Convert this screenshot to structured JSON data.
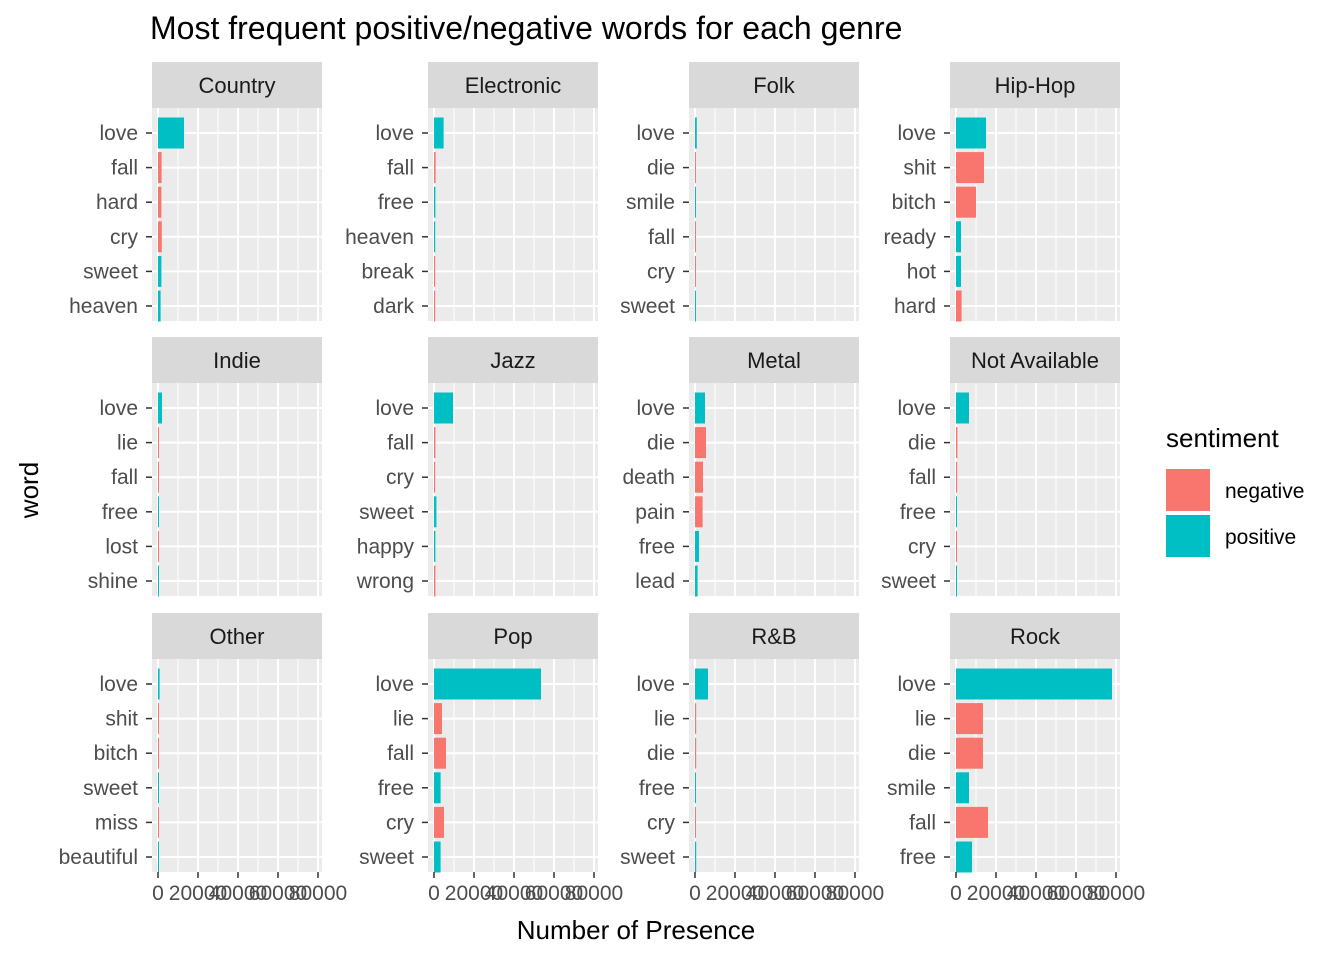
{
  "chart_data": {
    "type": "bar",
    "orientation": "horizontal",
    "title": "Most frequent positive/negative words for each genre",
    "xlabel": "Number of Presence",
    "ylabel": "word",
    "xlim": [
      0,
      80000
    ],
    "x_ticks": [
      0,
      20000,
      40000,
      60000,
      80000
    ],
    "x_tick_labels": [
      "0",
      "20000",
      "40000",
      "60000",
      "80000"
    ],
    "grid": true,
    "facet_layout": {
      "rows": 3,
      "cols": 4
    },
    "legend": {
      "title": "sentiment",
      "placement": "right",
      "entries": [
        {
          "name": "negative",
          "color": "#F8766D"
        },
        {
          "name": "positive",
          "color": "#00BFC4"
        }
      ]
    },
    "colors": {
      "negative": "#F8766D",
      "positive": "#00BFC4",
      "panel": "#EBEBEB",
      "strip": "#D9D9D9",
      "grid": "#FFFFFF"
    },
    "facets": [
      {
        "genre": "Country",
        "words": [
          {
            "word": "love",
            "value": 13000,
            "sentiment": "positive"
          },
          {
            "word": "fall",
            "value": 1800,
            "sentiment": "negative"
          },
          {
            "word": "hard",
            "value": 1700,
            "sentiment": "negative"
          },
          {
            "word": "cry",
            "value": 1900,
            "sentiment": "negative"
          },
          {
            "word": "sweet",
            "value": 1700,
            "sentiment": "positive"
          },
          {
            "word": "heaven",
            "value": 1300,
            "sentiment": "positive"
          }
        ]
      },
      {
        "genre": "Electronic",
        "words": [
          {
            "word": "love",
            "value": 4800,
            "sentiment": "positive"
          },
          {
            "word": "fall",
            "value": 800,
            "sentiment": "negative"
          },
          {
            "word": "free",
            "value": 700,
            "sentiment": "positive"
          },
          {
            "word": "heaven",
            "value": 600,
            "sentiment": "positive"
          },
          {
            "word": "break",
            "value": 600,
            "sentiment": "negative"
          },
          {
            "word": "dark",
            "value": 600,
            "sentiment": "negative"
          }
        ]
      },
      {
        "genre": "Folk",
        "words": [
          {
            "word": "love",
            "value": 900,
            "sentiment": "positive"
          },
          {
            "word": "die",
            "value": 250,
            "sentiment": "negative"
          },
          {
            "word": "smile",
            "value": 200,
            "sentiment": "positive"
          },
          {
            "word": "fall",
            "value": 200,
            "sentiment": "negative"
          },
          {
            "word": "cry",
            "value": 200,
            "sentiment": "negative"
          },
          {
            "word": "sweet",
            "value": 200,
            "sentiment": "positive"
          }
        ]
      },
      {
        "genre": "Hip-Hop",
        "words": [
          {
            "word": "love",
            "value": 15000,
            "sentiment": "positive"
          },
          {
            "word": "shit",
            "value": 14000,
            "sentiment": "negative"
          },
          {
            "word": "bitch",
            "value": 10000,
            "sentiment": "negative"
          },
          {
            "word": "ready",
            "value": 2500,
            "sentiment": "positive"
          },
          {
            "word": "hot",
            "value": 2500,
            "sentiment": "positive"
          },
          {
            "word": "hard",
            "value": 2800,
            "sentiment": "negative"
          }
        ]
      },
      {
        "genre": "Indie",
        "words": [
          {
            "word": "love",
            "value": 2000,
            "sentiment": "positive"
          },
          {
            "word": "lie",
            "value": 400,
            "sentiment": "negative"
          },
          {
            "word": "fall",
            "value": 400,
            "sentiment": "negative"
          },
          {
            "word": "free",
            "value": 350,
            "sentiment": "positive"
          },
          {
            "word": "lost",
            "value": 350,
            "sentiment": "negative"
          },
          {
            "word": "shine",
            "value": 350,
            "sentiment": "positive"
          }
        ]
      },
      {
        "genre": "Jazz",
        "words": [
          {
            "word": "love",
            "value": 9500,
            "sentiment": "positive"
          },
          {
            "word": "fall",
            "value": 700,
            "sentiment": "negative"
          },
          {
            "word": "cry",
            "value": 600,
            "sentiment": "negative"
          },
          {
            "word": "sweet",
            "value": 1200,
            "sentiment": "positive"
          },
          {
            "word": "happy",
            "value": 700,
            "sentiment": "positive"
          },
          {
            "word": "wrong",
            "value": 700,
            "sentiment": "negative"
          }
        ]
      },
      {
        "genre": "Metal",
        "words": [
          {
            "word": "love",
            "value": 5000,
            "sentiment": "positive"
          },
          {
            "word": "die",
            "value": 5500,
            "sentiment": "negative"
          },
          {
            "word": "death",
            "value": 4000,
            "sentiment": "negative"
          },
          {
            "word": "pain",
            "value": 3800,
            "sentiment": "negative"
          },
          {
            "word": "free",
            "value": 2000,
            "sentiment": "positive"
          },
          {
            "word": "lead",
            "value": 1300,
            "sentiment": "positive"
          }
        ]
      },
      {
        "genre": "Not Available",
        "words": [
          {
            "word": "love",
            "value": 6500,
            "sentiment": "positive"
          },
          {
            "word": "die",
            "value": 700,
            "sentiment": "negative"
          },
          {
            "word": "fall",
            "value": 600,
            "sentiment": "negative"
          },
          {
            "word": "free",
            "value": 500,
            "sentiment": "positive"
          },
          {
            "word": "cry",
            "value": 500,
            "sentiment": "negative"
          },
          {
            "word": "sweet",
            "value": 500,
            "sentiment": "positive"
          }
        ]
      },
      {
        "genre": "Other",
        "words": [
          {
            "word": "love",
            "value": 800,
            "sentiment": "positive"
          },
          {
            "word": "shit",
            "value": 500,
            "sentiment": "negative"
          },
          {
            "word": "bitch",
            "value": 500,
            "sentiment": "negative"
          },
          {
            "word": "sweet",
            "value": 150,
            "sentiment": "positive"
          },
          {
            "word": "miss",
            "value": 150,
            "sentiment": "negative"
          },
          {
            "word": "beautiful",
            "value": 150,
            "sentiment": "positive"
          }
        ]
      },
      {
        "genre": "Pop",
        "words": [
          {
            "word": "love",
            "value": 53500,
            "sentiment": "positive"
          },
          {
            "word": "lie",
            "value": 4000,
            "sentiment": "negative"
          },
          {
            "word": "fall",
            "value": 6000,
            "sentiment": "negative"
          },
          {
            "word": "free",
            "value": 3300,
            "sentiment": "positive"
          },
          {
            "word": "cry",
            "value": 5000,
            "sentiment": "negative"
          },
          {
            "word": "sweet",
            "value": 3300,
            "sentiment": "positive"
          }
        ]
      },
      {
        "genre": "R&B",
        "words": [
          {
            "word": "love",
            "value": 6500,
            "sentiment": "positive"
          },
          {
            "word": "lie",
            "value": 600,
            "sentiment": "negative"
          },
          {
            "word": "die",
            "value": 600,
            "sentiment": "negative"
          },
          {
            "word": "free",
            "value": 500,
            "sentiment": "positive"
          },
          {
            "word": "cry",
            "value": 500,
            "sentiment": "negative"
          },
          {
            "word": "sweet",
            "value": 600,
            "sentiment": "positive"
          }
        ]
      },
      {
        "genre": "Rock",
        "words": [
          {
            "word": "love",
            "value": 78000,
            "sentiment": "positive"
          },
          {
            "word": "lie",
            "value": 13500,
            "sentiment": "negative"
          },
          {
            "word": "die",
            "value": 13500,
            "sentiment": "negative"
          },
          {
            "word": "smile",
            "value": 6500,
            "sentiment": "positive"
          },
          {
            "word": "fall",
            "value": 16000,
            "sentiment": "negative"
          },
          {
            "word": "free",
            "value": 8000,
            "sentiment": "positive"
          }
        ]
      }
    ]
  }
}
